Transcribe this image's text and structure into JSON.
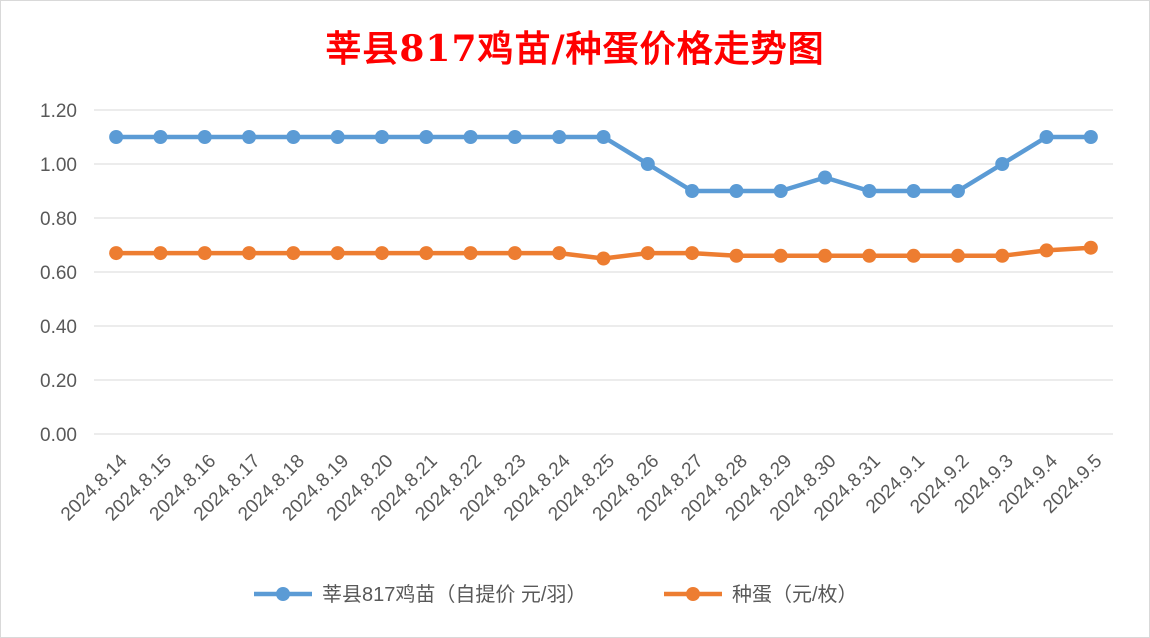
{
  "colors": {
    "series1": "#5b9bd5",
    "series2": "#ed7d31",
    "title": "#ff0000",
    "grid": "#d9d9d9",
    "text": "#595959"
  },
  "chart_data": {
    "type": "line",
    "title": "莘县817鸡苗/种蛋价格走势图",
    "xlabel": "",
    "ylabel": "",
    "ylim": [
      0,
      1.2
    ],
    "yticks": [
      "0.00",
      "0.20",
      "0.40",
      "0.60",
      "0.80",
      "1.00",
      "1.20"
    ],
    "grid": "horizontal",
    "legend_position": "bottom",
    "x": [
      "2024.8.14",
      "2024.8.15",
      "2024.8.16",
      "2024.8.17",
      "2024.8.18",
      "2024.8.19",
      "2024.8.20",
      "2024.8.21",
      "2024.8.22",
      "2024.8.23",
      "2024.8.24",
      "2024.8.25",
      "2024.8.26",
      "2024.8.27",
      "2024.8.28",
      "2024.8.29",
      "2024.8.30",
      "2024.8.31",
      "2024.9.1",
      "2024.9.2",
      "2024.9.3",
      "2024.9.4",
      "2024.9.5"
    ],
    "series": [
      {
        "name": "莘县817鸡苗（自提价 元/羽）",
        "values": [
          1.1,
          1.1,
          1.1,
          1.1,
          1.1,
          1.1,
          1.1,
          1.1,
          1.1,
          1.1,
          1.1,
          1.1,
          1.0,
          0.9,
          0.9,
          0.9,
          0.95,
          0.9,
          0.9,
          0.9,
          1.0,
          1.1,
          1.1
        ]
      },
      {
        "name": "种蛋（元/枚）",
        "values": [
          0.67,
          0.67,
          0.67,
          0.67,
          0.67,
          0.67,
          0.67,
          0.67,
          0.67,
          0.67,
          0.67,
          0.65,
          0.67,
          0.67,
          0.66,
          0.66,
          0.66,
          0.66,
          0.66,
          0.66,
          0.66,
          0.68,
          0.69
        ]
      }
    ]
  }
}
